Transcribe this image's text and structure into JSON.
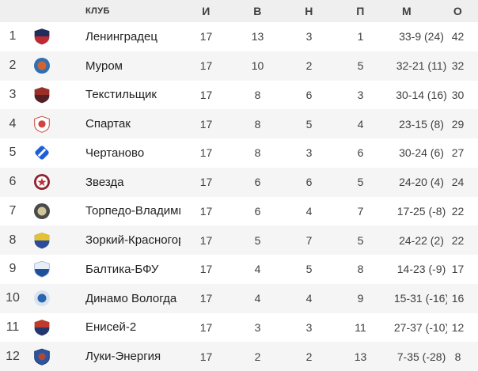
{
  "table": {
    "header": {
      "club": "КЛУБ",
      "games": "И",
      "wins": "В",
      "draws": "Н",
      "losses": "П",
      "goals": "М",
      "points": "О"
    },
    "rows": [
      {
        "pos": "1",
        "club": "Ленинградец",
        "games": "17",
        "wins": "13",
        "draws": "3",
        "losses": "1",
        "goals": "33-9 (24)",
        "points": "42",
        "logo": {
          "shape": "shield",
          "c1": "#212c5e",
          "c2": "#bf2a31"
        }
      },
      {
        "pos": "2",
        "club": "Муром",
        "games": "17",
        "wins": "10",
        "draws": "2",
        "losses": "5",
        "goals": "32-21 (11)",
        "points": "32",
        "logo": {
          "shape": "circle",
          "c1": "#2f6fb4",
          "c2": "#cf6430"
        }
      },
      {
        "pos": "3",
        "club": "Текстильщик",
        "games": "17",
        "wins": "8",
        "draws": "6",
        "losses": "3",
        "goals": "30-14 (16)",
        "points": "30",
        "logo": {
          "shape": "shield",
          "c1": "#9a2f28",
          "c2": "#542023"
        }
      },
      {
        "pos": "4",
        "club": "Спартак",
        "games": "17",
        "wins": "8",
        "draws": "5",
        "losses": "4",
        "goals": "23-15 (8)",
        "points": "29",
        "logo": {
          "shape": "badge",
          "c1": "#ffffff",
          "c2": "#d0453e",
          "stroke": "#d0453e"
        }
      },
      {
        "pos": "5",
        "club": "Чертаново",
        "games": "17",
        "wins": "8",
        "draws": "3",
        "losses": "6",
        "goals": "30-24 (6)",
        "points": "27",
        "logo": {
          "shape": "diamond",
          "c1": "#1e5fd6",
          "c2": "#ffffff"
        }
      },
      {
        "pos": "6",
        "club": "Звезда",
        "games": "17",
        "wins": "6",
        "draws": "6",
        "losses": "5",
        "goals": "24-20 (4)",
        "points": "24",
        "logo": {
          "shape": "star",
          "c1": "#8e2230",
          "c2": "#c13039"
        }
      },
      {
        "pos": "7",
        "club": "Торпедо-Владимир",
        "games": "17",
        "wins": "6",
        "draws": "4",
        "losses": "7",
        "goals": "17-25 (-8)",
        "points": "22",
        "logo": {
          "shape": "circle",
          "c1": "#4a4a4a",
          "c2": "#cfc49a"
        }
      },
      {
        "pos": "8",
        "club": "Зоркий-Красногорск",
        "games": "17",
        "wins": "5",
        "draws": "7",
        "losses": "5",
        "goals": "24-22 (2)",
        "points": "22",
        "logo": {
          "shape": "shield",
          "c1": "#e5c233",
          "c2": "#2c4a9e"
        }
      },
      {
        "pos": "9",
        "club": "Балтика-БФУ",
        "games": "17",
        "wins": "4",
        "draws": "5",
        "losses": "8",
        "goals": "14-23 (-9)",
        "points": "17",
        "logo": {
          "shape": "shield",
          "c1": "#e8eef6",
          "c2": "#1d4f9c",
          "stroke": "#9bb3d6"
        }
      },
      {
        "pos": "10",
        "club": "Динамо Вологда",
        "games": "17",
        "wins": "4",
        "draws": "4",
        "losses": "9",
        "goals": "15-31 (-16)",
        "points": "16",
        "logo": {
          "shape": "circle",
          "c1": "#d9e3f0",
          "c2": "#2b65b0"
        }
      },
      {
        "pos": "11",
        "club": "Енисей-2",
        "games": "17",
        "wins": "3",
        "draws": "3",
        "losses": "11",
        "goals": "27-37 (-10)",
        "points": "12",
        "logo": {
          "shape": "shield",
          "c1": "#c0392b",
          "c2": "#23366e"
        }
      },
      {
        "pos": "12",
        "club": "Луки-Энергия",
        "games": "17",
        "wins": "2",
        "draws": "2",
        "losses": "13",
        "goals": "7-35 (-28)",
        "points": "8",
        "logo": {
          "shape": "badge",
          "c1": "#2a55a0",
          "c2": "#b0483a",
          "stroke": "#1c3a73"
        }
      }
    ]
  },
  "colors": {
    "header_bg": "#efefef",
    "row_bg": "#ffffff",
    "row_alt_bg": "#f5f5f5",
    "header_text": "#333333",
    "club_text": "#212121",
    "stat_text": "#404040"
  }
}
